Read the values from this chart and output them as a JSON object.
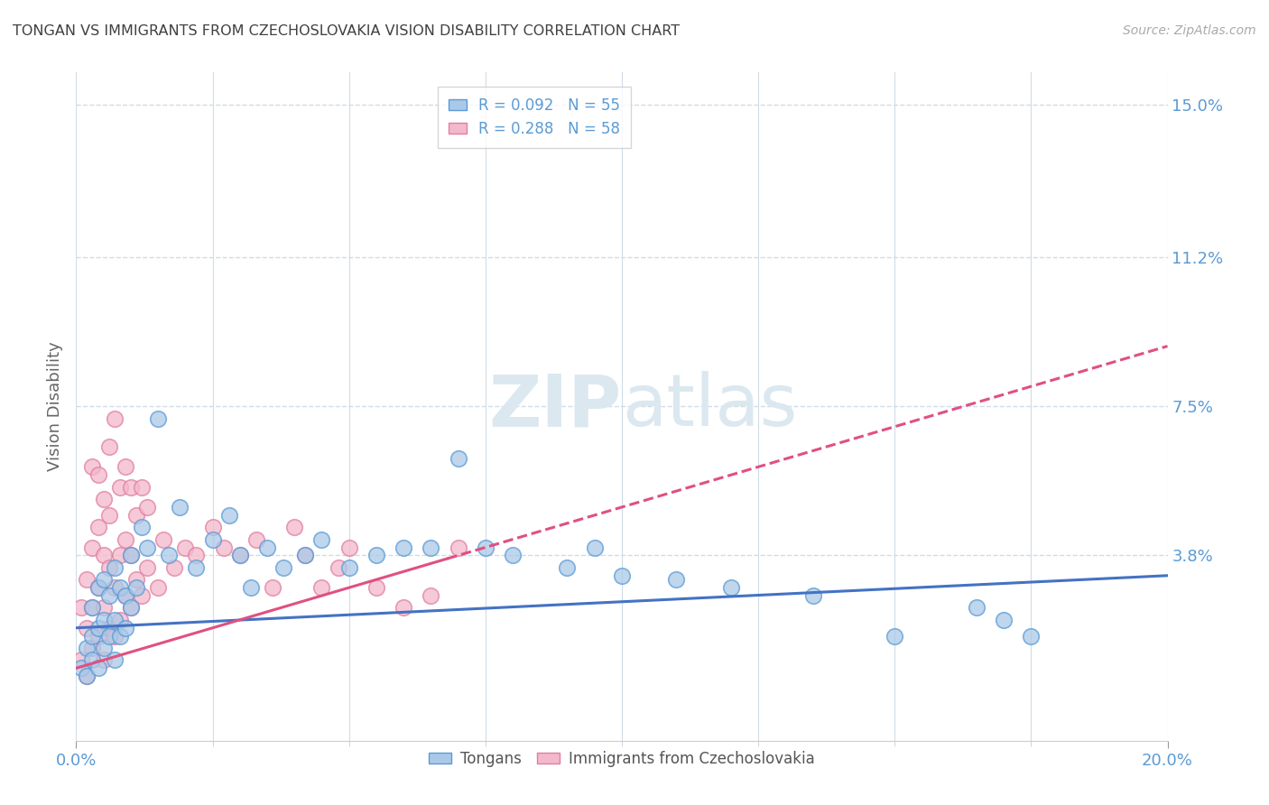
{
  "title": "TONGAN VS IMMIGRANTS FROM CZECHOSLOVAKIA VISION DISABILITY CORRELATION CHART",
  "source": "Source: ZipAtlas.com",
  "ylabel": "Vision Disability",
  "xlim": [
    0.0,
    0.2
  ],
  "ylim": [
    -0.008,
    0.158
  ],
  "ytick_positions": [
    0.038,
    0.075,
    0.112,
    0.15
  ],
  "ytick_labels": [
    "3.8%",
    "7.5%",
    "11.2%",
    "15.0%"
  ],
  "legend1_label": "R = 0.092   N = 55",
  "legend2_label": "R = 0.288   N = 58",
  "legend_bottom_label1": "Tongans",
  "legend_bottom_label2": "Immigrants from Czechoslovakia",
  "blue_color": "#aac9e8",
  "blue_edge_color": "#5b9bd5",
  "pink_color": "#f4b8cb",
  "pink_edge_color": "#e07fa0",
  "blue_line_color": "#4472c4",
  "pink_line_color": "#e05080",
  "title_color": "#404040",
  "axis_label_color": "#666666",
  "tick_color": "#5b9bd5",
  "grid_color": "#d0dce8",
  "watermark_color": "#dce8f0",
  "blue_R": 0.092,
  "pink_R": 0.288,
  "blue_scatter_x": [
    0.001,
    0.002,
    0.002,
    0.003,
    0.003,
    0.003,
    0.004,
    0.004,
    0.004,
    0.005,
    0.005,
    0.005,
    0.006,
    0.006,
    0.007,
    0.007,
    0.007,
    0.008,
    0.008,
    0.009,
    0.009,
    0.01,
    0.01,
    0.011,
    0.012,
    0.013,
    0.015,
    0.017,
    0.019,
    0.022,
    0.025,
    0.028,
    0.03,
    0.032,
    0.035,
    0.038,
    0.042,
    0.045,
    0.05,
    0.055,
    0.06,
    0.065,
    0.07,
    0.075,
    0.08,
    0.09,
    0.095,
    0.1,
    0.11,
    0.12,
    0.135,
    0.15,
    0.165,
    0.17,
    0.175
  ],
  "blue_scatter_y": [
    0.01,
    0.008,
    0.015,
    0.012,
    0.018,
    0.025,
    0.01,
    0.02,
    0.03,
    0.015,
    0.022,
    0.032,
    0.018,
    0.028,
    0.012,
    0.022,
    0.035,
    0.018,
    0.03,
    0.02,
    0.028,
    0.025,
    0.038,
    0.03,
    0.045,
    0.04,
    0.072,
    0.038,
    0.05,
    0.035,
    0.042,
    0.048,
    0.038,
    0.03,
    0.04,
    0.035,
    0.038,
    0.042,
    0.035,
    0.038,
    0.04,
    0.04,
    0.062,
    0.04,
    0.038,
    0.035,
    0.04,
    0.033,
    0.032,
    0.03,
    0.028,
    0.018,
    0.025,
    0.022,
    0.018
  ],
  "pink_scatter_x": [
    0.001,
    0.001,
    0.002,
    0.002,
    0.002,
    0.003,
    0.003,
    0.003,
    0.003,
    0.004,
    0.004,
    0.004,
    0.004,
    0.005,
    0.005,
    0.005,
    0.005,
    0.006,
    0.006,
    0.006,
    0.006,
    0.007,
    0.007,
    0.007,
    0.008,
    0.008,
    0.008,
    0.009,
    0.009,
    0.009,
    0.01,
    0.01,
    0.01,
    0.011,
    0.011,
    0.012,
    0.012,
    0.013,
    0.013,
    0.015,
    0.016,
    0.018,
    0.02,
    0.022,
    0.025,
    0.027,
    0.03,
    0.033,
    0.036,
    0.04,
    0.042,
    0.045,
    0.048,
    0.05,
    0.055,
    0.06,
    0.065,
    0.07
  ],
  "pink_scatter_y": [
    0.012,
    0.025,
    0.008,
    0.02,
    0.032,
    0.015,
    0.025,
    0.04,
    0.06,
    0.018,
    0.03,
    0.045,
    0.058,
    0.012,
    0.025,
    0.038,
    0.052,
    0.02,
    0.035,
    0.048,
    0.065,
    0.018,
    0.03,
    0.072,
    0.022,
    0.038,
    0.055,
    0.028,
    0.042,
    0.06,
    0.025,
    0.038,
    0.055,
    0.032,
    0.048,
    0.028,
    0.055,
    0.035,
    0.05,
    0.03,
    0.042,
    0.035,
    0.04,
    0.038,
    0.045,
    0.04,
    0.038,
    0.042,
    0.03,
    0.045,
    0.038,
    0.03,
    0.035,
    0.04,
    0.03,
    0.025,
    0.028,
    0.04
  ],
  "blue_trend_x0": 0.0,
  "blue_trend_x1": 0.2,
  "blue_trend_y0": 0.02,
  "blue_trend_y1": 0.033,
  "pink_trend_x0": 0.0,
  "pink_trend_x1": 0.2,
  "pink_trend_y0": 0.01,
  "pink_trend_y1": 0.09
}
